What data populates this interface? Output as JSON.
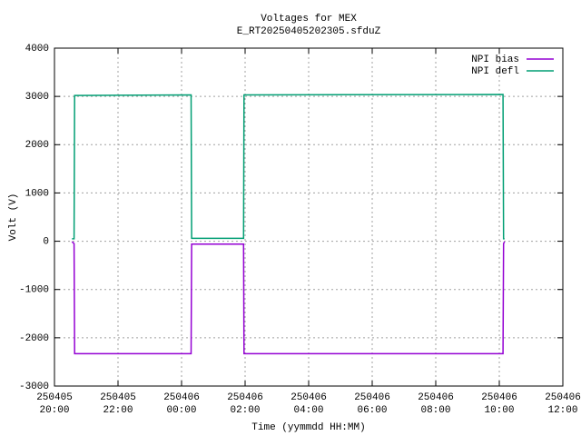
{
  "chart_data": {
    "type": "line",
    "title": "Voltages for MEX",
    "subtitle": "E_RT20250405202305.sfduZ",
    "x_label": "Time (yymmdd HH:MM)",
    "y_label": "Volt (V)",
    "x": [
      "250405 20:33",
      "250405 20:37",
      "250405 20:38",
      "250406 00:18",
      "250406 00:19",
      "250406 01:57",
      "250406 01:58",
      "250406 10:07",
      "250406 10:08",
      "250406 10:10"
    ],
    "series": [
      {
        "name": "NPI bias",
        "color": "#9400d3",
        "values": [
          -10,
          -50,
          -2330,
          -2330,
          -60,
          -60,
          -2330,
          -2330,
          -50,
          -10
        ]
      },
      {
        "name": "NPI defl",
        "color": "#009e73",
        "values": [
          50,
          50,
          3020,
          3030,
          60,
          60,
          3030,
          3040,
          50,
          50
        ]
      }
    ],
    "xlim": [
      "250405 20:00",
      "250406 12:00"
    ],
    "xticks": [
      "250405 20:00",
      "250405 22:00",
      "250406 00:00",
      "250406 02:00",
      "250406 04:00",
      "250406 06:00",
      "250406 08:00",
      "250406 10:00",
      "250406 12:00"
    ],
    "ylim": [
      -3000,
      4000
    ],
    "yticks": [
      -3000,
      -2000,
      -1000,
      0,
      1000,
      2000,
      3000,
      4000
    ],
    "grid": true,
    "legend": "top-right"
  }
}
